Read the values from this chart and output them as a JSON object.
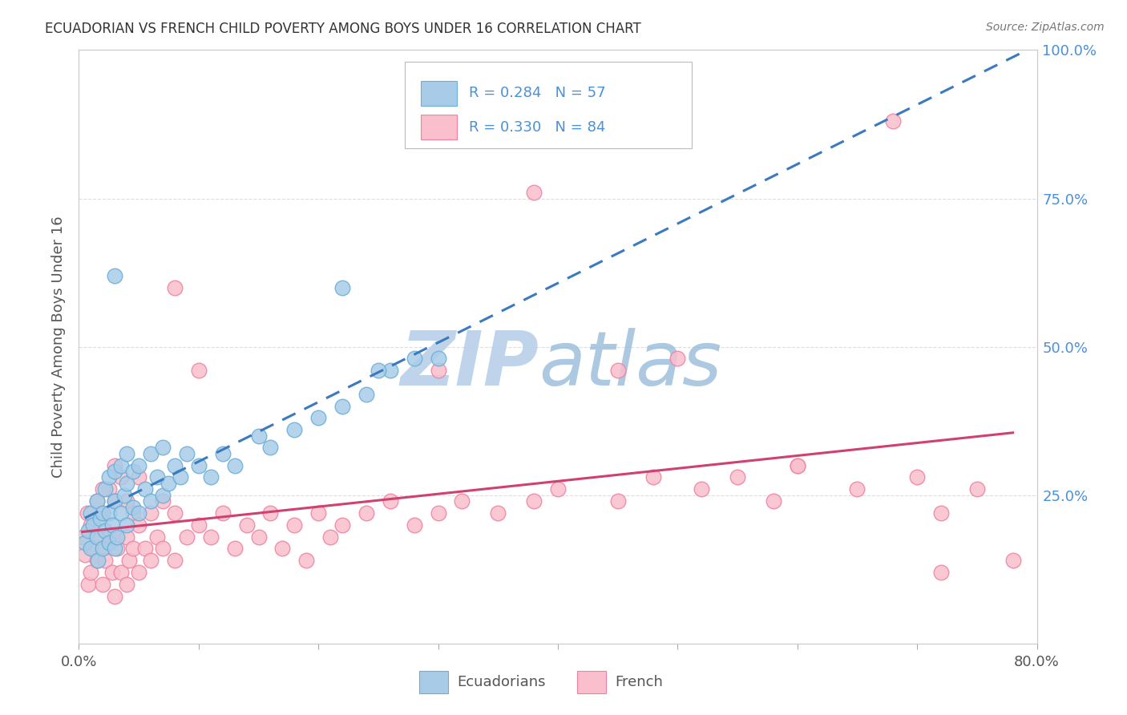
{
  "title": "ECUADORIAN VS FRENCH CHILD POVERTY AMONG BOYS UNDER 16 CORRELATION CHART",
  "source": "Source: ZipAtlas.com",
  "ylabel": "Child Poverty Among Boys Under 16",
  "xlim": [
    0,
    0.8
  ],
  "ylim": [
    0,
    1.0
  ],
  "yticks": [
    0.0,
    0.25,
    0.5,
    0.75,
    1.0
  ],
  "xticks": [
    0.0,
    0.1,
    0.2,
    0.3,
    0.4,
    0.5,
    0.6,
    0.7,
    0.8
  ],
  "ytick_labels": [
    "",
    "25.0%",
    "50.0%",
    "75.0%",
    "100.0%"
  ],
  "xtick_labels": [
    "0.0%",
    "",
    "",
    "",
    "",
    "",
    "",
    "",
    "80.0%"
  ],
  "ecuadorian_R": 0.284,
  "ecuadorian_N": 57,
  "french_R": 0.33,
  "french_N": 84,
  "blue_scatter_color": "#a8cce8",
  "blue_edge_color": "#6aaed6",
  "pink_scatter_color": "#f9bfcc",
  "pink_edge_color": "#f080a0",
  "blue_line_color": "#3a7abf",
  "pink_line_color": "#d04070",
  "axis_text_color": "#4a90d9",
  "title_color": "#333333",
  "watermark_color_zip": "#b8cfe8",
  "watermark_color_atlas": "#a0c0d8",
  "background_color": "#ffffff",
  "grid_color": "#dddddd",
  "ecuadorian_x": [
    0.005,
    0.008,
    0.01,
    0.01,
    0.012,
    0.015,
    0.015,
    0.016,
    0.018,
    0.02,
    0.02,
    0.022,
    0.022,
    0.025,
    0.025,
    0.025,
    0.028,
    0.03,
    0.03,
    0.03,
    0.032,
    0.035,
    0.035,
    0.038,
    0.04,
    0.04,
    0.04,
    0.045,
    0.045,
    0.05,
    0.05,
    0.055,
    0.06,
    0.06,
    0.065,
    0.07,
    0.07,
    0.075,
    0.08,
    0.085,
    0.09,
    0.1,
    0.11,
    0.12,
    0.13,
    0.15,
    0.16,
    0.18,
    0.2,
    0.22,
    0.24,
    0.26,
    0.28,
    0.3,
    0.22,
    0.25,
    0.03
  ],
  "ecuadorian_y": [
    0.17,
    0.19,
    0.16,
    0.22,
    0.2,
    0.18,
    0.24,
    0.14,
    0.21,
    0.16,
    0.22,
    0.19,
    0.26,
    0.17,
    0.22,
    0.28,
    0.2,
    0.16,
    0.24,
    0.29,
    0.18,
    0.22,
    0.3,
    0.25,
    0.2,
    0.27,
    0.32,
    0.23,
    0.29,
    0.22,
    0.3,
    0.26,
    0.24,
    0.32,
    0.28,
    0.25,
    0.33,
    0.27,
    0.3,
    0.28,
    0.32,
    0.3,
    0.28,
    0.32,
    0.3,
    0.35,
    0.33,
    0.36,
    0.38,
    0.4,
    0.42,
    0.46,
    0.48,
    0.48,
    0.6,
    0.46,
    0.62
  ],
  "french_x": [
    0.003,
    0.005,
    0.007,
    0.008,
    0.01,
    0.01,
    0.012,
    0.015,
    0.015,
    0.018,
    0.02,
    0.02,
    0.02,
    0.022,
    0.025,
    0.025,
    0.028,
    0.03,
    0.03,
    0.03,
    0.032,
    0.035,
    0.035,
    0.04,
    0.04,
    0.04,
    0.042,
    0.045,
    0.045,
    0.05,
    0.05,
    0.05,
    0.055,
    0.06,
    0.06,
    0.065,
    0.07,
    0.07,
    0.08,
    0.08,
    0.09,
    0.1,
    0.11,
    0.12,
    0.13,
    0.14,
    0.15,
    0.16,
    0.17,
    0.18,
    0.19,
    0.2,
    0.21,
    0.22,
    0.24,
    0.26,
    0.28,
    0.3,
    0.32,
    0.35,
    0.38,
    0.4,
    0.45,
    0.48,
    0.52,
    0.55,
    0.58,
    0.6,
    0.65,
    0.7,
    0.72,
    0.75,
    0.78,
    0.38,
    0.45,
    0.08,
    0.1,
    0.3,
    0.5,
    0.6,
    0.68,
    0.72,
    0.02,
    0.03
  ],
  "french_y": [
    0.18,
    0.15,
    0.22,
    0.1,
    0.12,
    0.2,
    0.16,
    0.14,
    0.24,
    0.18,
    0.1,
    0.16,
    0.22,
    0.14,
    0.18,
    0.26,
    0.12,
    0.08,
    0.18,
    0.24,
    0.16,
    0.12,
    0.28,
    0.1,
    0.18,
    0.24,
    0.14,
    0.16,
    0.22,
    0.12,
    0.2,
    0.28,
    0.16,
    0.14,
    0.22,
    0.18,
    0.16,
    0.24,
    0.14,
    0.22,
    0.18,
    0.2,
    0.18,
    0.22,
    0.16,
    0.2,
    0.18,
    0.22,
    0.16,
    0.2,
    0.14,
    0.22,
    0.18,
    0.2,
    0.22,
    0.24,
    0.2,
    0.22,
    0.24,
    0.22,
    0.24,
    0.26,
    0.24,
    0.28,
    0.26,
    0.28,
    0.24,
    0.3,
    0.26,
    0.28,
    0.22,
    0.26,
    0.14,
    0.76,
    0.46,
    0.6,
    0.46,
    0.46,
    0.48,
    0.3,
    0.88,
    0.12,
    0.26,
    0.3
  ]
}
